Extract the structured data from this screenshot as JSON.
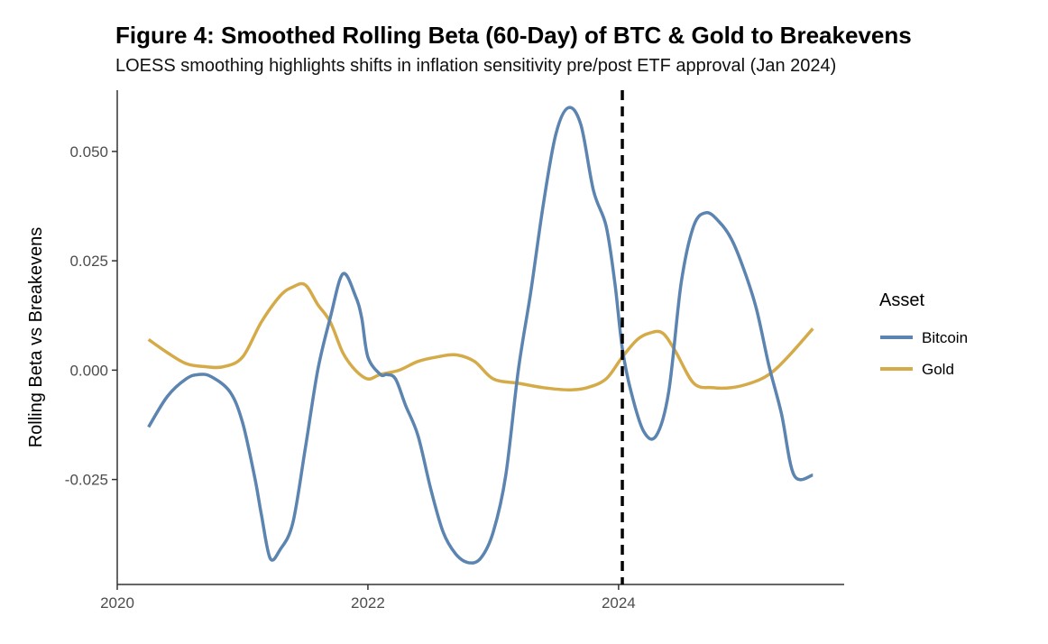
{
  "chart_data": {
    "type": "line",
    "title": "Figure 4: Smoothed Rolling Beta (60-Day) of BTC & Gold to Breakevens",
    "subtitle": "LOESS smoothing highlights shifts in inflation sensitivity pre/post ETF approval (Jan 2024)",
    "xlabel": "",
    "ylabel": "Rolling Beta vs Breakevens",
    "xlim": [
      2020.0,
      2025.8
    ],
    "ylim": [
      -0.049,
      0.064
    ],
    "x_ticks": [
      2020,
      2022,
      2024
    ],
    "x_tick_labels": [
      "2020",
      "2022",
      "2024"
    ],
    "y_ticks": [
      -0.025,
      0.0,
      0.025,
      0.05
    ],
    "y_tick_labels": [
      "-0.025",
      "0.000",
      "0.025",
      "0.050"
    ],
    "grid": false,
    "legend": {
      "title": "Asset",
      "position": "right"
    },
    "vline": {
      "x": 2024.03,
      "style": "dashed",
      "color": "#000000"
    },
    "series": [
      {
        "name": "Bitcoin",
        "color": "#5b84b1",
        "x": [
          2020.25,
          2020.4,
          2020.55,
          2020.65,
          2020.75,
          2020.9,
          2021.0,
          2021.1,
          2021.15,
          2021.22,
          2021.3,
          2021.4,
          2021.5,
          2021.6,
          2021.7,
          2021.8,
          2021.9,
          2021.95,
          2022.0,
          2022.1,
          2022.15,
          2022.22,
          2022.3,
          2022.4,
          2022.5,
          2022.6,
          2022.7,
          2022.8,
          2022.9,
          2023.0,
          2023.1,
          2023.2,
          2023.3,
          2023.4,
          2023.5,
          2023.6,
          2023.7,
          2023.8,
          2023.9,
          2023.97,
          2024.03,
          2024.1,
          2024.2,
          2024.3,
          2024.4,
          2024.5,
          2024.6,
          2024.7,
          2024.8,
          2024.9,
          2025.0,
          2025.1,
          2025.2,
          2025.3,
          2025.4,
          2025.55
        ],
        "y": [
          -0.013,
          -0.006,
          -0.002,
          -0.001,
          -0.0015,
          -0.005,
          -0.012,
          -0.025,
          -0.033,
          -0.043,
          -0.041,
          -0.035,
          -0.018,
          0.0,
          0.012,
          0.022,
          0.017,
          0.012,
          0.003,
          -0.001,
          -0.001,
          -0.002,
          -0.008,
          -0.015,
          -0.027,
          -0.037,
          -0.042,
          -0.044,
          -0.043,
          -0.037,
          -0.024,
          0.0,
          0.018,
          0.038,
          0.054,
          0.06,
          0.056,
          0.041,
          0.033,
          0.02,
          0.005,
          -0.005,
          -0.014,
          -0.015,
          -0.005,
          0.02,
          0.033,
          0.036,
          0.034,
          0.03,
          0.023,
          0.014,
          0.001,
          -0.01,
          -0.024,
          -0.024
        ]
      },
      {
        "name": "Gold",
        "color": "#d4ab48",
        "x": [
          2020.25,
          2020.4,
          2020.55,
          2020.7,
          2020.85,
          2021.0,
          2021.15,
          2021.3,
          2021.4,
          2021.5,
          2021.6,
          2021.7,
          2021.8,
          2021.9,
          2022.0,
          2022.1,
          2022.25,
          2022.4,
          2022.55,
          2022.7,
          2022.85,
          2023.0,
          2023.2,
          2023.4,
          2023.6,
          2023.75,
          2023.9,
          2024.03,
          2024.15,
          2024.25,
          2024.35,
          2024.45,
          2024.6,
          2024.75,
          2024.9,
          2025.05,
          2025.2,
          2025.35,
          2025.55
        ],
        "y": [
          0.007,
          0.004,
          0.0015,
          0.0008,
          0.0008,
          0.003,
          0.011,
          0.017,
          0.019,
          0.0195,
          0.015,
          0.011,
          0.004,
          0.0,
          -0.002,
          -0.001,
          0.0,
          0.002,
          0.003,
          0.0035,
          0.002,
          -0.002,
          -0.003,
          -0.004,
          -0.0045,
          -0.004,
          -0.002,
          0.003,
          0.007,
          0.0085,
          0.0085,
          0.0045,
          -0.003,
          -0.004,
          -0.004,
          -0.003,
          -0.001,
          0.003,
          0.0095
        ]
      }
    ]
  }
}
